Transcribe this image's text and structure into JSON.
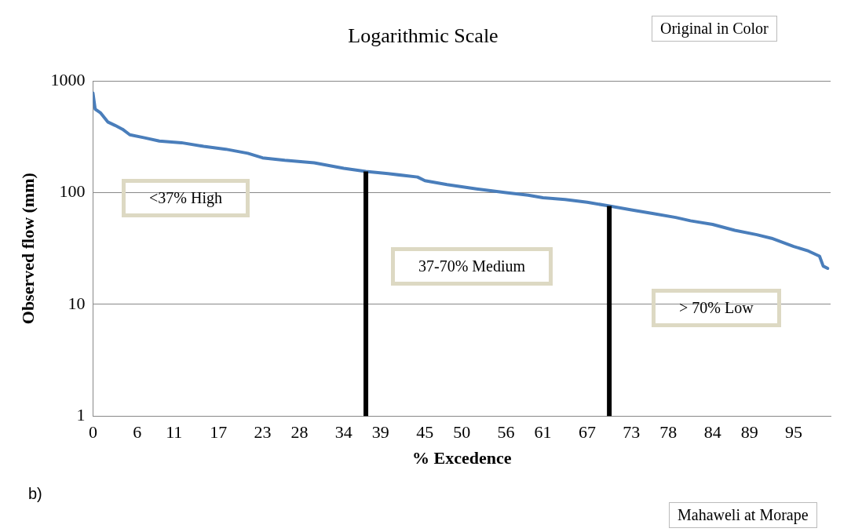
{
  "chart_data": {
    "type": "line",
    "title": "Logarithmic Scale",
    "xlabel": "% Excedence",
    "ylabel": "Observed flow (mm)",
    "x": [
      0,
      0.3,
      1,
      2,
      3,
      4,
      5,
      7,
      9,
      12,
      15,
      18,
      21,
      23,
      26,
      30,
      34,
      37,
      40,
      44,
      45,
      48,
      52,
      56,
      59,
      61,
      64,
      67,
      70,
      73,
      76,
      79,
      81,
      84,
      87,
      90,
      92,
      95,
      97,
      98.5,
      99,
      99.6
    ],
    "series": [
      {
        "color": "#4a7ebb",
        "values": [
          780,
          560,
          520,
          430,
          400,
          370,
          330,
          310,
          290,
          280,
          260,
          245,
          225,
          205,
          195,
          185,
          165,
          155,
          148,
          138,
          128,
          118,
          108,
          100,
          95,
          90,
          87,
          82,
          76,
          70,
          65,
          60,
          56,
          52,
          46,
          42,
          39,
          33,
          30,
          27,
          22,
          21
        ]
      }
    ],
    "log": "y",
    "ylim": [
      1,
      1000
    ],
    "yticks": [
      1,
      10,
      100,
      1000
    ],
    "xlim": [
      0,
      100
    ],
    "xticks": [
      0,
      6,
      11,
      17,
      23,
      28,
      34,
      39,
      45,
      50,
      56,
      61,
      67,
      73,
      78,
      84,
      89,
      95
    ],
    "grid": "y",
    "legend": false,
    "marker": "none",
    "line_style": "solid",
    "ref_lines": [
      {
        "axis": "x",
        "value": 37,
        "color": "#000000"
      },
      {
        "axis": "x",
        "value": 70,
        "color": "#000000"
      }
    ],
    "annotations": [
      "<37% High",
      "37-70% Medium",
      "> 70% Low",
      "Original in Color",
      "Mahaweli at Morape",
      "b)"
    ]
  }
}
